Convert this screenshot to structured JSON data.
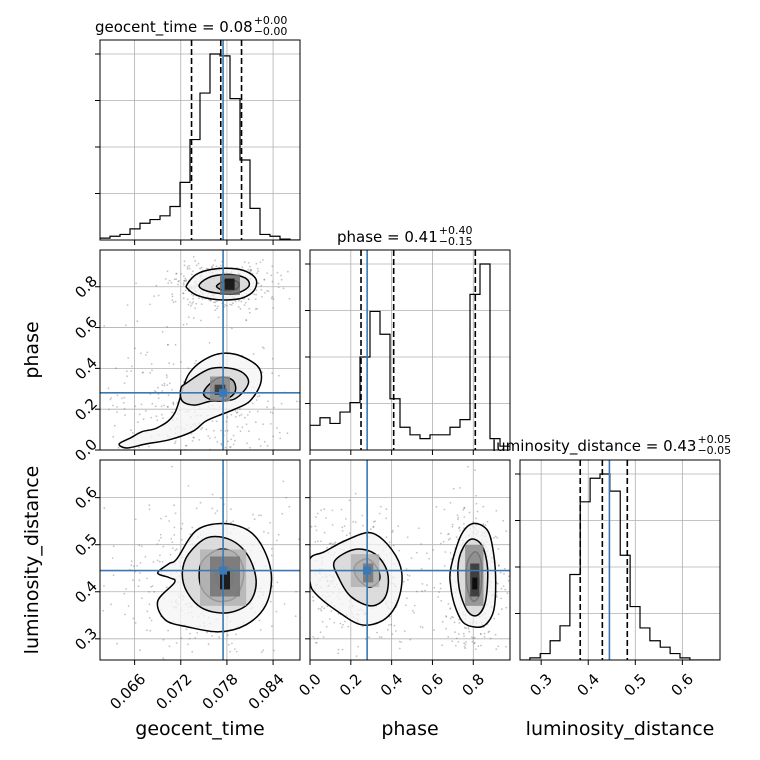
{
  "chart_data": {
    "type": "corner",
    "parameters": [
      "geocent_time",
      "phase",
      "luminosity_distance"
    ],
    "truths": {
      "geocent_time": 0.0775,
      "phase": 0.28,
      "luminosity_distance": 0.445
    },
    "axes": {
      "geocent_time": {
        "range": [
          0.0615,
          0.0875
        ],
        "ticks": [
          0.066,
          0.072,
          0.078,
          0.084
        ],
        "tick_labels": [
          "0.066",
          "0.072",
          "0.078",
          "0.084"
        ]
      },
      "phase": {
        "range": [
          0.0,
          0.98
        ],
        "ticks": [
          0.0,
          0.2,
          0.4,
          0.6,
          0.8
        ],
        "tick_labels": [
          "0.0",
          "0.2",
          "0.4",
          "0.6",
          "0.8"
        ]
      },
      "luminosity_distance": {
        "range": [
          0.255,
          0.68
        ],
        "ticks": [
          0.3,
          0.4,
          0.5,
          0.6
        ],
        "tick_labels": [
          "0.3",
          "0.4",
          "0.5",
          "0.6"
        ]
      }
    },
    "axis_labels": {
      "geocent_time": "geocent_time",
      "phase": "phase",
      "luminosity_distance": "luminosity_distance"
    },
    "titles": [
      {
        "param": "geocent_time",
        "name": "geocent_time",
        "value": "0.08",
        "plus": "+0.00",
        "minus": "−0.00"
      },
      {
        "param": "phase",
        "name": "phase",
        "value": "0.41",
        "plus": "+0.40",
        "minus": "−0.15"
      },
      {
        "param": "luminosity_distance",
        "name": "luminosity_distance",
        "value": "0.43",
        "plus": "+0.05",
        "minus": "−0.05"
      }
    ],
    "quantiles": {
      "geocent_time": [
        0.0734,
        0.0772,
        0.0799
      ],
      "phase": [
        0.25,
        0.41,
        0.81
      ],
      "luminosity_distance": [
        0.383,
        0.43,
        0.483
      ]
    },
    "histograms": {
      "geocent_time": {
        "edges": [
          0.0615,
          0.0628,
          0.0641,
          0.0654,
          0.0667,
          0.068,
          0.0693,
          0.0706,
          0.0719,
          0.0732,
          0.0745,
          0.0758,
          0.0771,
          0.0784,
          0.0797,
          0.081,
          0.0823,
          0.0836,
          0.0849,
          0.0862,
          0.0875
        ],
        "counts": [
          0.01,
          0.02,
          0.03,
          0.06,
          0.09,
          0.11,
          0.13,
          0.18,
          0.31,
          0.54,
          0.79,
          1.0,
          0.99,
          0.76,
          0.43,
          0.17,
          0.03,
          0.02,
          0.005,
          0.0
        ]
      },
      "phase": {
        "edges": [
          0.0,
          0.049,
          0.098,
          0.147,
          0.196,
          0.245,
          0.294,
          0.343,
          0.392,
          0.441,
          0.49,
          0.539,
          0.588,
          0.637,
          0.686,
          0.735,
          0.784,
          0.833,
          0.882,
          0.931,
          0.98
        ],
        "counts": [
          0.13,
          0.17,
          0.14,
          0.2,
          0.25,
          0.49,
          0.73,
          0.61,
          0.27,
          0.12,
          0.08,
          0.06,
          0.08,
          0.08,
          0.12,
          0.16,
          0.82,
          0.98,
          0.06,
          0.02
        ]
      },
      "luminosity_distance": {
        "edges": [
          0.255,
          0.276,
          0.298,
          0.319,
          0.34,
          0.361,
          0.383,
          0.404,
          0.425,
          0.446,
          0.468,
          0.489,
          0.51,
          0.531,
          0.553,
          0.574,
          0.595,
          0.616,
          0.638,
          0.659,
          0.68
        ],
        "counts": [
          0.0,
          0.01,
          0.03,
          0.09,
          0.16,
          0.4,
          0.74,
          0.85,
          0.87,
          0.79,
          0.49,
          0.25,
          0.15,
          0.09,
          0.06,
          0.03,
          0.01,
          0.0,
          0.0,
          0.0
        ]
      }
    },
    "contours": {
      "phase_vs_geocent_time": [
        {
          "level": "outer",
          "x": [
            0.0728,
            0.074,
            0.076,
            0.0785,
            0.0805,
            0.0818,
            0.0815,
            0.08,
            0.078,
            0.076,
            0.074,
            0.0729
          ],
          "y": [
            0.81,
            0.86,
            0.885,
            0.89,
            0.875,
            0.835,
            0.78,
            0.745,
            0.735,
            0.74,
            0.76,
            0.79
          ]
        },
        {
          "level": "mid",
          "x": [
            0.0745,
            0.076,
            0.0785,
            0.0805,
            0.0808,
            0.079,
            0.0765,
            0.0747
          ],
          "y": [
            0.815,
            0.85,
            0.86,
            0.84,
            0.8,
            0.765,
            0.77,
            0.79
          ]
        },
        {
          "level": "inner",
          "x": [
            0.0768,
            0.0782,
            0.0795,
            0.0793,
            0.0778,
            0.0768
          ],
          "y": [
            0.81,
            0.835,
            0.82,
            0.79,
            0.78,
            0.795
          ]
        },
        {
          "level": "outer",
          "x": [
            0.0655,
            0.067,
            0.069,
            0.0712,
            0.073,
            0.076,
            0.079,
            0.082,
            0.0824,
            0.081,
            0.079,
            0.077,
            0.0752,
            0.0735,
            0.0705,
            0.0675,
            0.065,
            0.064
          ],
          "y": [
            0.06,
            0.09,
            0.11,
            0.18,
            0.37,
            0.46,
            0.47,
            0.41,
            0.33,
            0.24,
            0.2,
            0.17,
            0.14,
            0.09,
            0.05,
            0.03,
            0.01,
            0.03
          ]
        },
        {
          "level": "mid",
          "x": [
            0.0728,
            0.076,
            0.0795,
            0.0808,
            0.079,
            0.076,
            0.0738,
            0.0722,
            0.072
          ],
          "y": [
            0.33,
            0.4,
            0.39,
            0.33,
            0.25,
            0.24,
            0.22,
            0.24,
            0.3
          ]
        },
        {
          "level": "inner",
          "x": [
            0.0752,
            0.077,
            0.0788,
            0.079,
            0.0772,
            0.0752
          ],
          "y": [
            0.3,
            0.355,
            0.34,
            0.28,
            0.24,
            0.26
          ]
        }
      ],
      "luminosity_distance_vs_geocent_time": [
        {
          "level": "outer",
          "x": [
            0.0715,
            0.074,
            0.0775,
            0.0808,
            0.0828,
            0.0838,
            0.083,
            0.0805,
            0.077,
            0.073,
            0.07,
            0.069,
            0.0712,
            0.0705,
            0.069,
            0.0705
          ],
          "y": [
            0.47,
            0.53,
            0.545,
            0.53,
            0.49,
            0.43,
            0.37,
            0.33,
            0.315,
            0.325,
            0.34,
            0.38,
            0.42,
            0.43,
            0.44,
            0.46
          ]
        },
        {
          "level": "mid",
          "x": [
            0.073,
            0.0755,
            0.0785,
            0.0808,
            0.0818,
            0.0808,
            0.078,
            0.0748,
            0.0728,
            0.0722
          ],
          "y": [
            0.48,
            0.515,
            0.51,
            0.475,
            0.42,
            0.375,
            0.355,
            0.365,
            0.4,
            0.44
          ]
        },
        {
          "level": "inner",
          "x": [
            0.0748,
            0.077,
            0.0792,
            0.0802,
            0.0792,
            0.0768,
            0.075,
            0.0744
          ],
          "y": [
            0.465,
            0.49,
            0.48,
            0.44,
            0.39,
            0.38,
            0.4,
            0.43
          ]
        },
        {
          "level": "core",
          "x": [
            0.0766,
            0.078,
            0.0788,
            0.078,
            0.0768
          ],
          "y": [
            0.44,
            0.455,
            0.43,
            0.405,
            0.415
          ]
        }
      ],
      "luminosity_distance_vs_phase": [
        {
          "level": "outer",
          "x": [
            0.0,
            0.07,
            0.18,
            0.3,
            0.4,
            0.45,
            0.43,
            0.36,
            0.25,
            0.13,
            0.03,
            0.0
          ],
          "y": [
            0.47,
            0.485,
            0.51,
            0.525,
            0.49,
            0.44,
            0.38,
            0.34,
            0.33,
            0.36,
            0.395,
            0.42
          ]
        },
        {
          "level": "mid",
          "x": [
            0.12,
            0.22,
            0.32,
            0.38,
            0.37,
            0.3,
            0.2,
            0.14
          ],
          "y": [
            0.465,
            0.49,
            0.48,
            0.44,
            0.39,
            0.37,
            0.39,
            0.43
          ]
        },
        {
          "level": "inner",
          "x": [
            0.22,
            0.28,
            0.33,
            0.34,
            0.29,
            0.23
          ],
          "y": [
            0.455,
            0.47,
            0.45,
            0.425,
            0.41,
            0.43
          ]
        },
        {
          "level": "outer",
          "x": [
            0.69,
            0.74,
            0.8,
            0.87,
            0.9,
            0.91,
            0.9,
            0.86,
            0.81,
            0.75,
            0.71,
            0.69
          ],
          "y": [
            0.45,
            0.52,
            0.545,
            0.53,
            0.48,
            0.42,
            0.36,
            0.33,
            0.325,
            0.335,
            0.37,
            0.41
          ]
        },
        {
          "level": "mid",
          "x": [
            0.73,
            0.78,
            0.84,
            0.87,
            0.86,
            0.82,
            0.77,
            0.73
          ],
          "y": [
            0.47,
            0.51,
            0.5,
            0.45,
            0.38,
            0.35,
            0.36,
            0.41
          ]
        },
        {
          "level": "inner",
          "x": [
            0.77,
            0.81,
            0.84,
            0.835,
            0.8,
            0.77
          ],
          "y": [
            0.46,
            0.485,
            0.46,
            0.4,
            0.38,
            0.41
          ]
        },
        {
          "level": "core",
          "x": [
            0.79,
            0.815,
            0.83,
            0.815,
            0.795
          ],
          "y": [
            0.435,
            0.45,
            0.42,
            0.395,
            0.405
          ]
        }
      ]
    },
    "density_blocks": {
      "phase_vs_geocent_time": [
        {
          "x0": 0.0771,
          "x1": 0.0797,
          "y0": 0.76,
          "y1": 0.86,
          "shade": 0.6
        },
        {
          "x0": 0.0777,
          "x1": 0.079,
          "y0": 0.785,
          "y1": 0.84,
          "shade": 0.95
        },
        {
          "x0": 0.0758,
          "x1": 0.0784,
          "y0": 0.24,
          "y1": 0.36,
          "shade": 0.45
        },
        {
          "x0": 0.0764,
          "x1": 0.0778,
          "y0": 0.27,
          "y1": 0.32,
          "shade": 0.8
        }
      ],
      "luminosity_distance_vs_geocent_time": [
        {
          "x0": 0.0745,
          "x1": 0.0805,
          "y0": 0.37,
          "y1": 0.49,
          "shade": 0.3
        },
        {
          "x0": 0.0758,
          "x1": 0.0797,
          "y0": 0.39,
          "y1": 0.475,
          "shade": 0.55
        },
        {
          "x0": 0.0771,
          "x1": 0.0784,
          "y0": 0.405,
          "y1": 0.445,
          "shade": 0.95
        }
      ],
      "luminosity_distance_vs_phase": [
        {
          "x0": 0.2,
          "x1": 0.34,
          "y0": 0.41,
          "y1": 0.48,
          "shade": 0.3
        },
        {
          "x0": 0.26,
          "x1": 0.31,
          "y0": 0.42,
          "y1": 0.46,
          "shade": 0.55
        },
        {
          "x0": 0.76,
          "x1": 0.85,
          "y0": 0.37,
          "y1": 0.5,
          "shade": 0.45
        },
        {
          "x0": 0.785,
          "x1": 0.83,
          "y0": 0.39,
          "y1": 0.46,
          "shade": 0.8
        },
        {
          "x0": 0.795,
          "x1": 0.82,
          "y0": 0.405,
          "y1": 0.43,
          "shade": 0.98
        }
      ]
    },
    "colors": {
      "truth": "#3c78b4",
      "line": "#000000",
      "grid": "#b0b0b0",
      "scatter": "#555555"
    },
    "grid": true
  }
}
